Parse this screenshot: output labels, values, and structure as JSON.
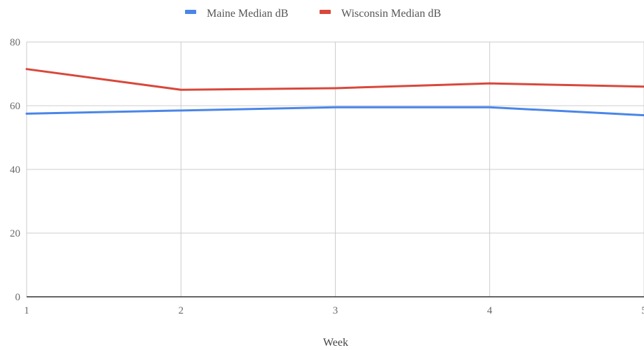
{
  "chart_data": {
    "type": "line",
    "title": "",
    "xlabel": "Week",
    "ylabel": "",
    "x": [
      1,
      2,
      3,
      4,
      5
    ],
    "ylim": [
      0,
      80
    ],
    "yticks": [
      0,
      20,
      40,
      60,
      80
    ],
    "grid": true,
    "legend_position": "top",
    "series": [
      {
        "name": "Maine Median dB",
        "color": "#4a86e8",
        "values": [
          57.5,
          58.5,
          59.5,
          59.5,
          57
        ]
      },
      {
        "name": "Wisconsin Median dB",
        "color": "#d8483b",
        "values": [
          71.5,
          65,
          65.5,
          67,
          66
        ]
      }
    ]
  }
}
